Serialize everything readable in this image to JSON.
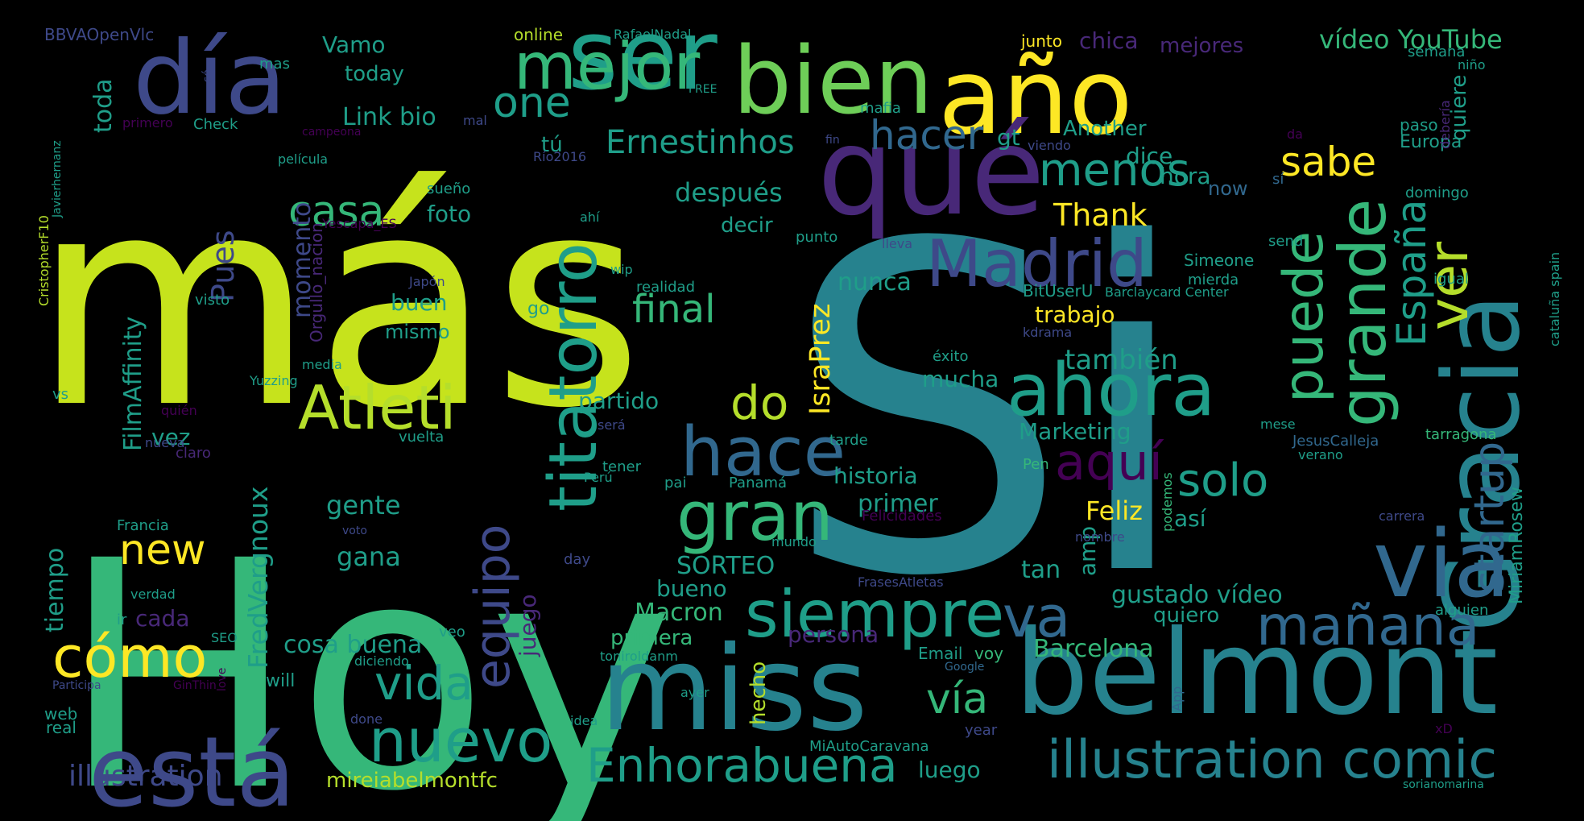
{
  "palette": {
    "background": "#000000",
    "dark_purple": "#440154",
    "purple": "#482878",
    "indigo": "#3e4989",
    "slate_blue": "#31688e",
    "teal_blue": "#26828e",
    "teal": "#1f9e89",
    "green_teal": "#35b779",
    "green": "#6ece58",
    "yellow_green": "#b5de2b",
    "lime": "#c6e31c",
    "yellow": "#fde725"
  },
  "words": [
    {
      "text": "más",
      "color": "lime"
    },
    {
      "text": "Hoy",
      "color": "green_teal"
    },
    {
      "text": "Si",
      "color": "teal_blue"
    },
    {
      "text": "día",
      "color": "indigo"
    },
    {
      "text": "ser",
      "color": "teal"
    },
    {
      "text": "bien",
      "color": "green"
    },
    {
      "text": "año",
      "color": "yellow"
    },
    {
      "text": "Gracia",
      "color": "teal_blue"
    },
    {
      "text": "qué",
      "color": "purple"
    },
    {
      "text": "mejor",
      "color": "green_teal"
    },
    {
      "text": "miss",
      "color": "teal_blue"
    },
    {
      "text": "belmont",
      "color": "teal_blue"
    },
    {
      "text": "está",
      "color": "indigo"
    },
    {
      "text": "via",
      "color": "slate_blue"
    },
    {
      "text": "Madrid",
      "color": "indigo"
    },
    {
      "text": "titatorro",
      "color": "teal"
    },
    {
      "text": "Atleti",
      "color": "yellow_green"
    },
    {
      "text": "ahora",
      "color": "teal"
    },
    {
      "text": "hace",
      "color": "slate_blue"
    },
    {
      "text": "gran",
      "color": "green_teal"
    },
    {
      "text": "siempre",
      "color": "teal"
    },
    {
      "text": "grande",
      "color": "green_teal"
    },
    {
      "text": "puede",
      "color": "green_teal"
    },
    {
      "text": "startup",
      "color": "slate_blue"
    },
    {
      "text": "ver",
      "color": "yellow_green"
    },
    {
      "text": "España",
      "color": "teal"
    },
    {
      "text": "illustration comic",
      "color": "teal_blue"
    },
    {
      "text": "Enhorabuena",
      "color": "teal"
    },
    {
      "text": "mañana",
      "color": "slate_blue"
    },
    {
      "text": "va",
      "color": "slate_blue"
    },
    {
      "text": "nuevo",
      "color": "teal"
    },
    {
      "text": "cómo",
      "color": "yellow"
    },
    {
      "text": "equipo",
      "color": "indigo"
    },
    {
      "text": "vida",
      "color": "teal"
    },
    {
      "text": "do",
      "color": "yellow_green"
    },
    {
      "text": "aquí",
      "color": "dark_purple"
    },
    {
      "text": "menos",
      "color": "teal"
    },
    {
      "text": "sabe",
      "color": "yellow"
    },
    {
      "text": "hacer",
      "color": "slate_blue"
    },
    {
      "text": "one",
      "color": "teal"
    },
    {
      "text": "Ernestinhos",
      "color": "teal"
    },
    {
      "text": "casa",
      "color": "green_teal"
    },
    {
      "text": "final",
      "color": "green_teal"
    },
    {
      "text": "solo",
      "color": "teal"
    },
    {
      "text": "vía",
      "color": "green_teal"
    },
    {
      "text": "new",
      "color": "yellow"
    },
    {
      "text": "Thank",
      "color": "yellow"
    },
    {
      "text": "después",
      "color": "teal"
    },
    {
      "text": "IsraPrez",
      "color": "yellow"
    },
    {
      "text": "FredVergnoux",
      "color": "teal"
    },
    {
      "text": "vídeo YouTube",
      "color": "green_teal"
    },
    {
      "text": "Link bio",
      "color": "teal"
    },
    {
      "text": "Vamo",
      "color": "teal"
    },
    {
      "text": "today",
      "color": "teal"
    },
    {
      "text": "toda",
      "color": "teal"
    },
    {
      "text": "tú",
      "color": "teal"
    },
    {
      "text": "gt",
      "color": "teal"
    },
    {
      "text": "Another",
      "color": "teal"
    },
    {
      "text": "dice",
      "color": "teal"
    },
    {
      "text": "hora",
      "color": "teal"
    },
    {
      "text": "now",
      "color": "slate_blue"
    },
    {
      "text": "quiere",
      "color": "teal"
    },
    {
      "text": "Europa",
      "color": "teal"
    },
    {
      "text": "paso",
      "color": "teal"
    },
    {
      "text": "chica",
      "color": "purple"
    },
    {
      "text": "mejores",
      "color": "purple"
    },
    {
      "text": "foto",
      "color": "teal"
    },
    {
      "text": "decir",
      "color": "teal"
    },
    {
      "text": "Pues",
      "color": "indigo"
    },
    {
      "text": "momento",
      "color": "indigo"
    },
    {
      "text": "buen",
      "color": "teal"
    },
    {
      "text": "mismo",
      "color": "teal"
    },
    {
      "text": "nunca",
      "color": "teal"
    },
    {
      "text": "trabajo",
      "color": "yellow"
    },
    {
      "text": "también",
      "color": "teal"
    },
    {
      "text": "mucha",
      "color": "teal"
    },
    {
      "text": "Marketing",
      "color": "teal"
    },
    {
      "text": "historia",
      "color": "teal"
    },
    {
      "text": "primer",
      "color": "teal"
    },
    {
      "text": "Feliz",
      "color": "yellow"
    },
    {
      "text": "así",
      "color": "teal"
    },
    {
      "text": "tan",
      "color": "teal"
    },
    {
      "text": "amp",
      "color": "teal"
    },
    {
      "text": "gustado vídeo",
      "color": "teal"
    },
    {
      "text": "quiero",
      "color": "teal"
    },
    {
      "text": "Barcelona",
      "color": "green_teal"
    },
    {
      "text": "partido",
      "color": "teal"
    },
    {
      "text": "vez",
      "color": "teal"
    },
    {
      "text": "gente",
      "color": "teal"
    },
    {
      "text": "gana",
      "color": "teal"
    },
    {
      "text": "SORTEO",
      "color": "teal"
    },
    {
      "text": "bueno",
      "color": "teal"
    },
    {
      "text": "Macron",
      "color": "green_teal"
    },
    {
      "text": "primera",
      "color": "green_teal"
    },
    {
      "text": "persona",
      "color": "purple"
    },
    {
      "text": "cosa buena",
      "color": "teal"
    },
    {
      "text": "juego",
      "color": "purple"
    },
    {
      "text": "hecho",
      "color": "yellow_green"
    },
    {
      "text": "luego",
      "color": "teal"
    },
    {
      "text": "mireiabelmontfc",
      "color": "yellow_green"
    },
    {
      "text": "illustration",
      "color": "indigo"
    },
    {
      "text": "tiempo",
      "color": "teal"
    },
    {
      "text": "cada",
      "color": "purple"
    },
    {
      "text": "FilmAffinity",
      "color": "teal"
    },
    {
      "text": "BBVAOpenVlc",
      "color": "indigo"
    },
    {
      "text": "CristopherF10",
      "color": "yellow_green"
    },
    {
      "text": "Javierhernanz",
      "color": "teal"
    },
    {
      "text": "Orgullo_nacion",
      "color": "purple"
    },
    {
      "text": "Yescapa_ES",
      "color": "dark_purple"
    },
    {
      "text": "online",
      "color": "yellow_green"
    },
    {
      "text": "RafaelNadal",
      "color": "teal"
    },
    {
      "text": "junto",
      "color": "yellow"
    },
    {
      "text": "semana",
      "color": "teal"
    },
    {
      "text": "niño",
      "color": "teal"
    },
    {
      "text": "debería",
      "color": "purple"
    },
    {
      "text": "domingo",
      "color": "teal"
    },
    {
      "text": "igual",
      "color": "teal"
    },
    {
      "text": "send",
      "color": "teal"
    },
    {
      "text": "Simeone",
      "color": "teal"
    },
    {
      "text": "mierda",
      "color": "teal"
    },
    {
      "text": "BitUserU",
      "color": "teal"
    },
    {
      "text": "Barclaycard Center",
      "color": "teal"
    },
    {
      "text": "cataluña spain",
      "color": "teal"
    },
    {
      "text": "MiriamRosew",
      "color": "teal"
    },
    {
      "text": "tarragona",
      "color": "green_teal"
    },
    {
      "text": "JesusCalleja",
      "color": "slate_blue"
    },
    {
      "text": "verano",
      "color": "teal"
    },
    {
      "text": "mese",
      "color": "teal"
    },
    {
      "text": "alguien",
      "color": "teal"
    },
    {
      "text": "Email",
      "color": "teal"
    },
    {
      "text": "voy",
      "color": "green_teal"
    },
    {
      "text": "Google",
      "color": "slate_blue"
    },
    {
      "text": "App",
      "color": "slate_blue"
    },
    {
      "text": "year",
      "color": "indigo"
    },
    {
      "text": "xD",
      "color": "dark_purple"
    },
    {
      "text": "sorianomarina",
      "color": "teal"
    },
    {
      "text": "MiAutoCaravana",
      "color": "teal"
    },
    {
      "text": "ayer",
      "color": "teal"
    },
    {
      "text": "idea",
      "color": "teal"
    },
    {
      "text": "done",
      "color": "indigo"
    },
    {
      "text": "toniroldanm",
      "color": "teal"
    },
    {
      "text": "diciendo",
      "color": "teal"
    },
    {
      "text": "veo",
      "color": "teal"
    },
    {
      "text": "will",
      "color": "teal"
    },
    {
      "text": "Participa",
      "color": "indigo"
    },
    {
      "text": "GinThin",
      "color": "dark_purple"
    },
    {
      "text": "web",
      "color": "teal"
    },
    {
      "text": "real",
      "color": "teal"
    },
    {
      "text": "love",
      "color": "dark_purple"
    },
    {
      "text": "SEO",
      "color": "teal"
    },
    {
      "text": "ir",
      "color": "teal"
    },
    {
      "text": "verdad",
      "color": "teal"
    },
    {
      "text": "Francia",
      "color": "teal"
    },
    {
      "text": "voto",
      "color": "indigo"
    },
    {
      "text": "mundo",
      "color": "teal"
    },
    {
      "text": "day",
      "color": "indigo"
    },
    {
      "text": "FrasesAtletas",
      "color": "indigo"
    },
    {
      "text": "nombre",
      "color": "indigo"
    },
    {
      "text": "podemos",
      "color": "green_teal"
    },
    {
      "text": "Pen",
      "color": "green_teal"
    },
    {
      "text": "carrera",
      "color": "indigo"
    },
    {
      "text": "Felicidades",
      "color": "dark_purple"
    },
    {
      "text": "Panamá",
      "color": "teal"
    },
    {
      "text": "pai",
      "color": "teal"
    },
    {
      "text": "Perú",
      "color": "teal"
    },
    {
      "text": "tener",
      "color": "teal"
    },
    {
      "text": "claro",
      "color": "purple"
    },
    {
      "text": "nueva",
      "color": "indigo"
    },
    {
      "text": "quién",
      "color": "dark_purple"
    },
    {
      "text": "vuelta",
      "color": "teal"
    },
    {
      "text": "será",
      "color": "indigo"
    },
    {
      "text": "tarde",
      "color": "teal"
    },
    {
      "text": "éxito",
      "color": "teal"
    },
    {
      "text": "kdrama",
      "color": "indigo"
    },
    {
      "text": "lleva",
      "color": "indigo"
    },
    {
      "text": "punto",
      "color": "teal"
    },
    {
      "text": "realidad",
      "color": "teal"
    },
    {
      "text": "wip",
      "color": "teal"
    },
    {
      "text": "Japón",
      "color": "indigo"
    },
    {
      "text": "go",
      "color": "teal"
    },
    {
      "text": "ahí",
      "color": "teal"
    },
    {
      "text": "Río2016",
      "color": "indigo"
    },
    {
      "text": "sueño",
      "color": "teal"
    },
    {
      "text": "viendo",
      "color": "indigo"
    },
    {
      "text": "fin",
      "color": "indigo"
    },
    {
      "text": "da",
      "color": "dark_purple"
    },
    {
      "text": "sí",
      "color": "slate_blue"
    },
    {
      "text": "mafia",
      "color": "teal"
    },
    {
      "text": "FREE",
      "color": "teal"
    },
    {
      "text": "mas",
      "color": "teal"
    },
    {
      "text": "sé",
      "color": "indigo"
    },
    {
      "text": "primero",
      "color": "dark_purple"
    },
    {
      "text": "Check",
      "color": "teal"
    },
    {
      "text": "mal",
      "color": "indigo"
    },
    {
      "text": "campeona",
      "color": "dark_purple"
    },
    {
      "text": "película",
      "color": "teal"
    },
    {
      "text": "visto",
      "color": "teal"
    },
    {
      "text": "media",
      "color": "teal"
    },
    {
      "text": "vs",
      "color": "teal"
    },
    {
      "text": "Yuzzing",
      "color": "teal"
    }
  ]
}
